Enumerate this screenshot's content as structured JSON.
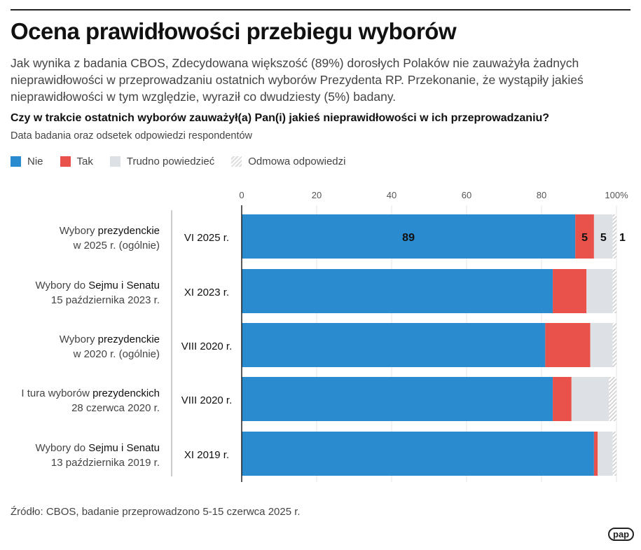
{
  "title": "Ocena prawidłowości przebiegu wyborów",
  "lead": "Jak wynika z badania CBOS, Zdecydowana większość (89%) dorosłych Polaków nie zauważyła żadnych nieprawidłowości w przeprowadzaniu ostatnich wyborów Prezydenta RP. Przekonanie, że wystąpiły jakieś nieprawidłowości w tym względzie, wyraził co dwudziesty (5%) badany.",
  "source": "Źródło: CBOS, badanie przeprowadzono 5-15 czerwca 2025 r.",
  "logo": "pap",
  "chart_data": {
    "type": "bar",
    "orientation": "horizontal-stacked",
    "title": "Czy w trakcie ostatnich wyborów zauważył(a) Pan(i) jakieś nieprawidłowości w ich przeprowadzaniu?",
    "subtitle": "Data badania oraz odsetek odpowiedzi respondentów",
    "xlim": [
      0,
      100
    ],
    "ticks": [
      "0",
      "20",
      "40",
      "60",
      "80",
      "100%"
    ],
    "legend_position": "top-left",
    "categories": [
      {
        "election_a": "Wybory ",
        "election_b": "prezydenckie",
        "election_line2": "w 2025 r. (ogólnie)",
        "date": "VI 2025 r."
      },
      {
        "election_a": "Wybory do ",
        "election_b": "Sejmu i Senatu",
        "election_line2": "15 października 2023 r.",
        "date": "XI 2023 r."
      },
      {
        "election_a": "Wybory ",
        "election_b": "prezydenckie",
        "election_line2": "w 2020 r. (ogólnie)",
        "date": "VIII 2020 r."
      },
      {
        "election_a": "I tura wyborów ",
        "election_b": "prezydenckich",
        "election_line2": "28 czerwca 2020 r.",
        "date": "VIII 2020 r."
      },
      {
        "election_a": "Wybory do ",
        "election_b": "Sejmu i Senatu",
        "election_line2": "13 października 2019 r.",
        "date": "XI 2019 r."
      }
    ],
    "series": [
      {
        "name": "Nie",
        "color": "#2a8bcf",
        "values": [
          89,
          83,
          81,
          83,
          94
        ]
      },
      {
        "name": "Tak",
        "color": "#e8524a",
        "values": [
          5,
          9,
          12,
          5,
          1
        ]
      },
      {
        "name": "Trudno powiedzieć",
        "color": "#dde1e5",
        "values": [
          5,
          7,
          6,
          10,
          4
        ]
      },
      {
        "name": "Odmowa odpowiedzi",
        "color": "hatch",
        "values": [
          1,
          1,
          1,
          2,
          1
        ]
      }
    ],
    "labeled_row": 0
  }
}
